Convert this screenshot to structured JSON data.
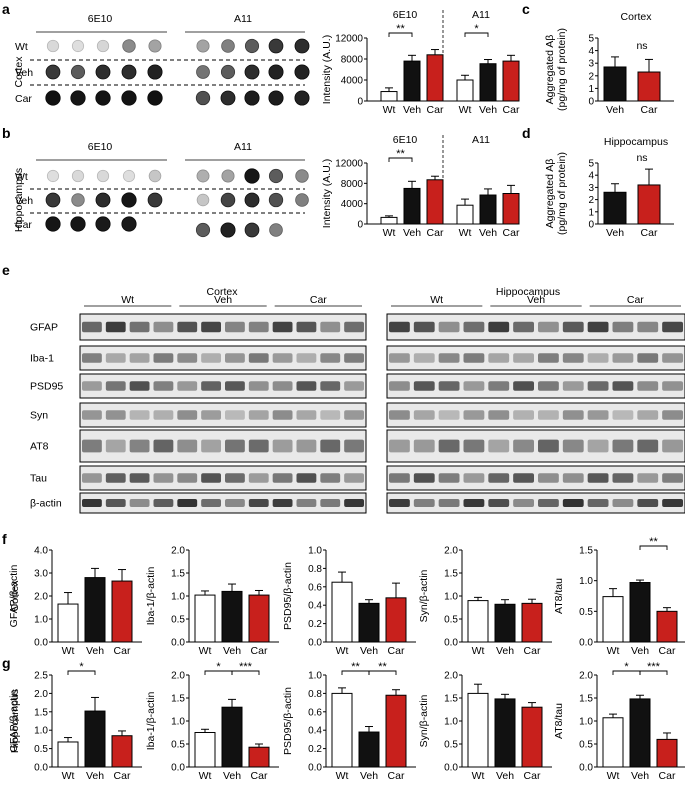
{
  "colors": {
    "veh": "#111111",
    "car": "#c8201c",
    "wt": "#ffffff",
    "axis": "#000000"
  },
  "panel_labels": [
    "a",
    "b",
    "c",
    "d",
    "e",
    "f",
    "g"
  ],
  "dot_blots": [
    {
      "region": "Cortex",
      "antibody_labels": [
        "6E10",
        "A11"
      ],
      "row_labels": [
        "Wt",
        "Veh",
        "Car"
      ],
      "intensity": [
        [
          0.12,
          0.1,
          0.13,
          0.45,
          0.35,
          0.35,
          0.5,
          0.65,
          0.8,
          0.85
        ],
        [
          0.8,
          0.65,
          0.85,
          0.85,
          0.9,
          0.55,
          0.65,
          0.85,
          0.9,
          0.9
        ],
        [
          0.97,
          0.95,
          0.96,
          0.96,
          0.97,
          0.7,
          0.85,
          0.92,
          0.92,
          0.9
        ]
      ]
    },
    {
      "region": "Hippocampus",
      "antibody_labels": [
        "6E10",
        "A11"
      ],
      "row_labels": [
        "Wt",
        "Veh",
        "Car"
      ],
      "intensity": [
        [
          0.1,
          0.12,
          0.12,
          0.1,
          0.2,
          0.3,
          0.35,
          0.95,
          0.65,
          0.45
        ],
        [
          0.8,
          0.45,
          0.85,
          0.95,
          0.8,
          0.2,
          0.75,
          0.85,
          0.7,
          0.5
        ],
        [
          0.95,
          0.95,
          0.93,
          0.93,
          null,
          0.65,
          0.9,
          0.8,
          0.5,
          null
        ]
      ]
    }
  ],
  "western_blot": {
    "regions": [
      "Cortex",
      "Hippocampus"
    ],
    "groups": [
      "Wt",
      "Veh",
      "Car"
    ],
    "bands": [
      "GFAP",
      "Iba-1",
      "PSD95",
      "Syn",
      "AT8",
      "Tau",
      "β-actin"
    ]
  },
  "chart_data": [
    {
      "panel": "a",
      "type": "bar",
      "ylabel": "Intensity (A.U.)",
      "ylim": [
        0,
        12000
      ],
      "yticks": [
        "0",
        "4000",
        "8000",
        "12000"
      ],
      "groups": [
        {
          "name": "6E10",
          "categories": [
            "Wt",
            "Veh",
            "Car"
          ],
          "values": [
            1800,
            7600,
            8800
          ],
          "errors": [
            700,
            1100,
            1000
          ]
        },
        {
          "name": "A11",
          "categories": [
            "Wt",
            "Veh",
            "Car"
          ],
          "values": [
            4000,
            7100,
            7600
          ],
          "errors": [
            900,
            800,
            1100
          ]
        }
      ],
      "significance": [
        {
          "group": 0,
          "from": 0,
          "to": 1,
          "label": "**"
        },
        {
          "group": 1,
          "from": 0,
          "to": 1,
          "label": "*"
        }
      ]
    },
    {
      "panel": "b",
      "type": "bar",
      "ylabel": "Intensity (A.U.)",
      "ylim": [
        0,
        12000
      ],
      "yticks": [
        "0",
        "4000",
        "8000",
        "12000"
      ],
      "groups": [
        {
          "name": "6E10",
          "categories": [
            "Wt",
            "Veh",
            "Car"
          ],
          "values": [
            1300,
            7000,
            8700
          ],
          "errors": [
            300,
            1400,
            700
          ]
        },
        {
          "name": "A11",
          "categories": [
            "Wt",
            "Veh",
            "Car"
          ],
          "values": [
            3700,
            5700,
            6000
          ],
          "errors": [
            1200,
            1200,
            1600
          ]
        }
      ],
      "significance": [
        {
          "group": 0,
          "from": 0,
          "to": 1,
          "label": "**"
        }
      ]
    },
    {
      "panel": "c",
      "type": "bar",
      "title": "Cortex",
      "ylabel": "Aggregated Aβ",
      "ylabel2": "(pg/mg of protein)",
      "ylim": [
        0,
        5
      ],
      "yticks": [
        "0",
        "1",
        "2",
        "3",
        "4",
        "5"
      ],
      "categories": [
        "Veh",
        "Car"
      ],
      "values": [
        2.7,
        2.3
      ],
      "errors": [
        0.8,
        1.0
      ],
      "significance": [
        {
          "from": 0,
          "to": 1,
          "label": "ns",
          "bracket": false
        }
      ]
    },
    {
      "panel": "d",
      "type": "bar",
      "title": "Hippocampus",
      "ylabel": "Aggregated Aβ",
      "ylabel2": "(pg/mg of protein)",
      "ylim": [
        0,
        5
      ],
      "yticks": [
        "0",
        "1",
        "2",
        "3",
        "4",
        "5"
      ],
      "categories": [
        "Veh",
        "Car"
      ],
      "values": [
        2.6,
        3.2
      ],
      "errors": [
        0.7,
        1.3
      ],
      "significance": [
        {
          "from": 0,
          "to": 1,
          "label": "ns",
          "bracket": false
        }
      ]
    },
    {
      "panel": "f",
      "type": "bar",
      "row_label": "Cortex",
      "ylabel": "GFAP/β-actin",
      "ylim": [
        0,
        4
      ],
      "yticks": [
        "0.0",
        "1.0",
        "2.0",
        "3.0",
        "4.0"
      ],
      "categories": [
        "Wt",
        "Veh",
        "Car"
      ],
      "values": [
        1.65,
        2.8,
        2.65
      ],
      "errors": [
        0.5,
        0.4,
        0.5
      ],
      "significance": []
    },
    {
      "panel": "f",
      "type": "bar",
      "ylabel": "Iba-1/β-actin",
      "ylim": [
        0,
        2
      ],
      "yticks": [
        "0.0",
        "0.5",
        "1.0",
        "1.5",
        "2.0"
      ],
      "categories": [
        "Wt",
        "Veh",
        "Car"
      ],
      "values": [
        1.02,
        1.1,
        1.02
      ],
      "errors": [
        0.09,
        0.16,
        0.1
      ],
      "significance": []
    },
    {
      "panel": "f",
      "type": "bar",
      "ylabel": "PSD95/β-actin",
      "ylim": [
        0,
        1
      ],
      "yticks": [
        "0.0",
        "0.2",
        "0.4",
        "0.6",
        "0.8",
        "1.0"
      ],
      "categories": [
        "Wt",
        "Veh",
        "Car"
      ],
      "values": [
        0.65,
        0.42,
        0.48
      ],
      "errors": [
        0.11,
        0.04,
        0.16
      ],
      "significance": []
    },
    {
      "panel": "f",
      "type": "bar",
      "ylabel": "Syn/β-actin",
      "ylim": [
        0,
        2
      ],
      "yticks": [
        "0.0",
        "0.5",
        "1.0",
        "1.5",
        "2.0"
      ],
      "categories": [
        "Wt",
        "Veh",
        "Car"
      ],
      "values": [
        0.9,
        0.82,
        0.84
      ],
      "errors": [
        0.07,
        0.1,
        0.09
      ],
      "significance": []
    },
    {
      "panel": "f",
      "type": "bar",
      "ylabel": "AT8/tau",
      "ylim": [
        0,
        1.5
      ],
      "yticks": [
        "0.0",
        "0.5",
        "1.0",
        "1.5"
      ],
      "categories": [
        "Wt",
        "Veh",
        "Car"
      ],
      "values": [
        0.74,
        0.97,
        0.5
      ],
      "errors": [
        0.13,
        0.04,
        0.06
      ],
      "significance": [
        {
          "from": 1,
          "to": 2,
          "label": "**"
        }
      ]
    },
    {
      "panel": "g",
      "type": "bar",
      "row_label": "Hippocampus",
      "ylabel": "GFAP/β-actin",
      "ylim": [
        0,
        2.5
      ],
      "yticks": [
        "0.0",
        "0.5",
        "1.0",
        "1.5",
        "2.0",
        "2.5"
      ],
      "categories": [
        "Wt",
        "Veh",
        "Car"
      ],
      "values": [
        0.68,
        1.52,
        0.85
      ],
      "errors": [
        0.12,
        0.37,
        0.13
      ],
      "significance": [
        {
          "from": 0,
          "to": 1,
          "label": "*"
        }
      ]
    },
    {
      "panel": "g",
      "type": "bar",
      "ylabel": "Iba-1/β-actin",
      "ylim": [
        0,
        2
      ],
      "yticks": [
        "0.0",
        "0.5",
        "1.0",
        "1.5",
        "2.0"
      ],
      "categories": [
        "Wt",
        "Veh",
        "Car"
      ],
      "values": [
        0.75,
        1.3,
        0.43
      ],
      "errors": [
        0.07,
        0.17,
        0.07
      ],
      "significance": [
        {
          "from": 0,
          "to": 1,
          "label": "*"
        },
        {
          "from": 1,
          "to": 2,
          "label": "***"
        }
      ]
    },
    {
      "panel": "g",
      "type": "bar",
      "ylabel": "PSD95/β-actin",
      "ylim": [
        0,
        1
      ],
      "yticks": [
        "0.0",
        "0.2",
        "0.4",
        "0.6",
        "0.8",
        "1.0"
      ],
      "categories": [
        "Wt",
        "Veh",
        "Car"
      ],
      "values": [
        0.8,
        0.38,
        0.78
      ],
      "errors": [
        0.06,
        0.06,
        0.06
      ],
      "significance": [
        {
          "from": 0,
          "to": 1,
          "label": "**"
        },
        {
          "from": 1,
          "to": 2,
          "label": "**"
        }
      ]
    },
    {
      "panel": "g",
      "type": "bar",
      "ylabel": "Syn/β-actin",
      "ylim": [
        0,
        2
      ],
      "yticks": [
        "0.0",
        "0.5",
        "1.0",
        "1.5",
        "2.0"
      ],
      "categories": [
        "Wt",
        "Veh",
        "Car"
      ],
      "values": [
        1.6,
        1.48,
        1.3
      ],
      "errors": [
        0.2,
        0.1,
        0.1
      ],
      "significance": []
    },
    {
      "panel": "g",
      "type": "bar",
      "ylabel": "AT8/tau",
      "ylim": [
        0,
        2
      ],
      "yticks": [
        "0.0",
        "0.5",
        "1.0",
        "1.5",
        "2.0"
      ],
      "categories": [
        "Wt",
        "Veh",
        "Car"
      ],
      "values": [
        1.07,
        1.48,
        0.6
      ],
      "errors": [
        0.08,
        0.08,
        0.14
      ],
      "significance": [
        {
          "from": 0,
          "to": 1,
          "label": "*"
        },
        {
          "from": 1,
          "to": 2,
          "label": "***"
        }
      ]
    }
  ]
}
